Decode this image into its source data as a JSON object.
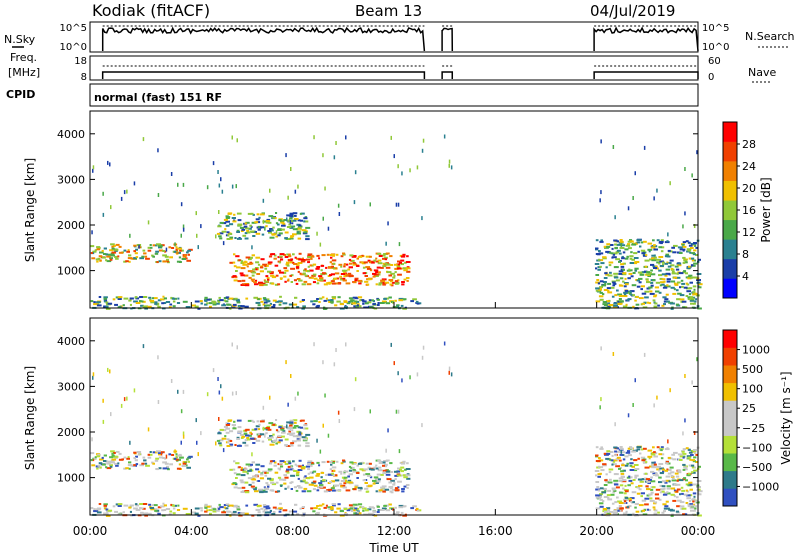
{
  "header": {
    "station": "Kodiak (fitACF)",
    "beam": "Beam 13",
    "date": "04/Jul/2019"
  },
  "left_labels": {
    "nsky": "N.Sky",
    "freq_line1": "Freq.",
    "freq_line2": "[MHz]",
    "cpid": "CPID"
  },
  "right_labels": {
    "nsearch": "N.Search",
    "nave": "Nave"
  },
  "cpid_text": "normal (fast) 151 RF",
  "chart_data": [
    {
      "type": "line",
      "name": "noise-panel",
      "left_axis": {
        "ticks": [
          "10^5",
          "10^0"
        ]
      },
      "right_axis": {
        "ticks": [
          "10^5",
          "10^0"
        ]
      },
      "data_intervals_ut": [
        [
          0.5,
          13.2
        ],
        [
          13.9,
          14.3
        ],
        [
          19.9,
          24.0
        ]
      ]
    },
    {
      "type": "line",
      "name": "frequency-panel",
      "left_axis": {
        "ticks": [
          "18",
          "8"
        ]
      },
      "right_axis": {
        "ticks": [
          "60",
          "0"
        ]
      }
    },
    {
      "type": "heatmap",
      "name": "power-panel",
      "ylabel": "Slant Range [km]",
      "yticks": [
        "4000",
        "3000",
        "2000",
        "1000"
      ],
      "ytick_values": [
        4000,
        3000,
        2000,
        1000
      ],
      "ylim": [
        180,
        4500
      ],
      "xlim": [
        0,
        24
      ],
      "colorbar": {
        "label": "Power [dB]",
        "ticks": [
          "28",
          "24",
          "20",
          "16",
          "12",
          "8",
          "4"
        ],
        "colors": [
          "#0000ff",
          "#1a3ea8",
          "#2a8090",
          "#49a848",
          "#90c838",
          "#f0c000",
          "#f08000",
          "#f04000",
          "#ff0000"
        ]
      },
      "echo_regions_ut_km": [
        {
          "t": [
            0.0,
            4.0
          ],
          "r": [
            1200,
            1600
          ],
          "level": "high"
        },
        {
          "t": [
            5.5,
            12.5
          ],
          "r": [
            700,
            1400
          ],
          "level": "very-high"
        },
        {
          "t": [
            5.0,
            8.5
          ],
          "r": [
            1700,
            2300
          ],
          "level": "medium"
        },
        {
          "t": [
            0.0,
            13.0
          ],
          "r": [
            180,
            450
          ],
          "level": "medium"
        },
        {
          "t": [
            19.9,
            24.0
          ],
          "r": [
            180,
            1700
          ],
          "level": "medium"
        }
      ]
    },
    {
      "type": "heatmap",
      "name": "velocity-panel",
      "ylabel": "Slant Range [km]",
      "yticks": [
        "4000",
        "3000",
        "2000",
        "1000"
      ],
      "ytick_values": [
        4000,
        3000,
        2000,
        1000
      ],
      "ylim": [
        180,
        4500
      ],
      "xlim": [
        0,
        24
      ],
      "xticks": [
        "00:00",
        "04:00",
        "08:00",
        "12:00",
        "16:00",
        "20:00",
        "00:00"
      ],
      "xtick_values": [
        0,
        4,
        8,
        12,
        16,
        20,
        24
      ],
      "xlabel": "Time UT",
      "colorbar": {
        "label": "Velocity [m s⁻¹]",
        "ticks": [
          "1000",
          "500",
          "100",
          "25",
          "−25",
          "−100",
          "−500",
          "−1000"
        ],
        "colors": [
          "#3050c0",
          "#2e7a8a",
          "#58b848",
          "#b4e038",
          "#c8c8c8",
          "#c8c8c8",
          "#f0c000",
          "#f08000",
          "#f04000",
          "#ff0000"
        ]
      }
    }
  ]
}
